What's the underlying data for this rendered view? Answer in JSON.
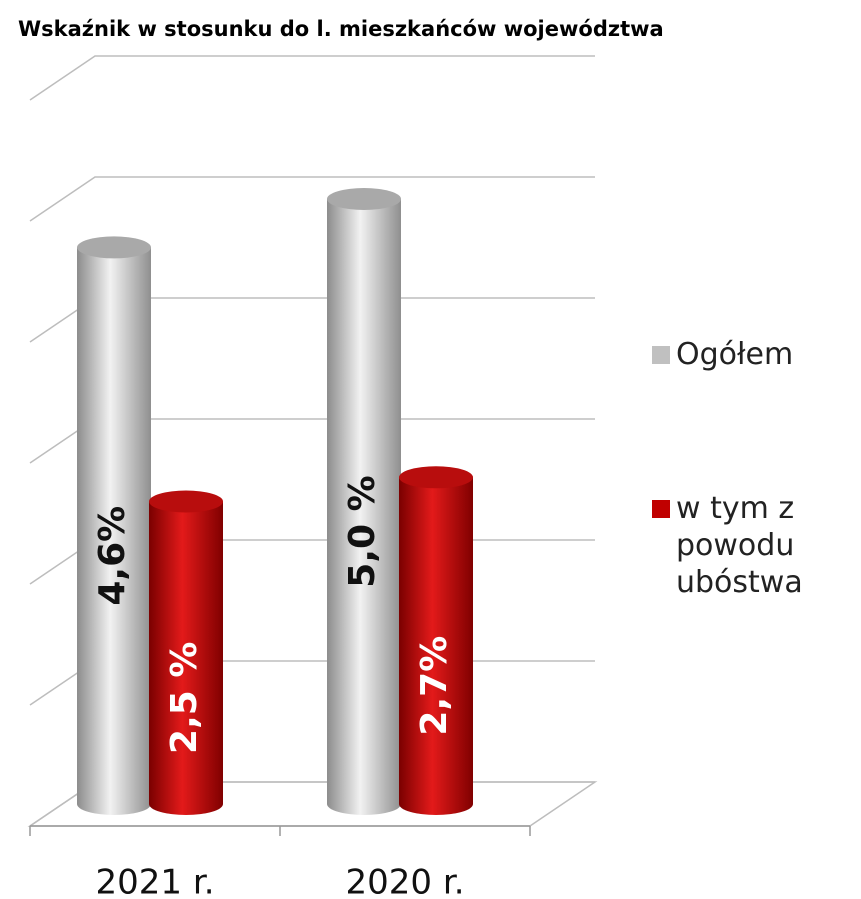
{
  "chart_data": {
    "type": "bar3d",
    "title": "Wskaźnik w stosunku do l. mieszkańców województwa",
    "categories": [
      "2021 r.",
      "2020 r."
    ],
    "series": [
      {
        "name": "Ogółem",
        "color": "#c0c0c0",
        "values": [
          4.6,
          5.0
        ],
        "value_labels": [
          "4,6%",
          "5,0 %"
        ]
      },
      {
        "name": "w tym z powodu ubóstwa",
        "color": "#c00000",
        "values": [
          2.5,
          2.7
        ],
        "value_labels": [
          "2,5 %",
          "2,7%"
        ]
      }
    ],
    "ylim": [
      0,
      6
    ],
    "yticks": [
      0,
      1,
      2,
      3,
      4,
      5,
      6
    ],
    "grid": true,
    "legend": "right"
  }
}
